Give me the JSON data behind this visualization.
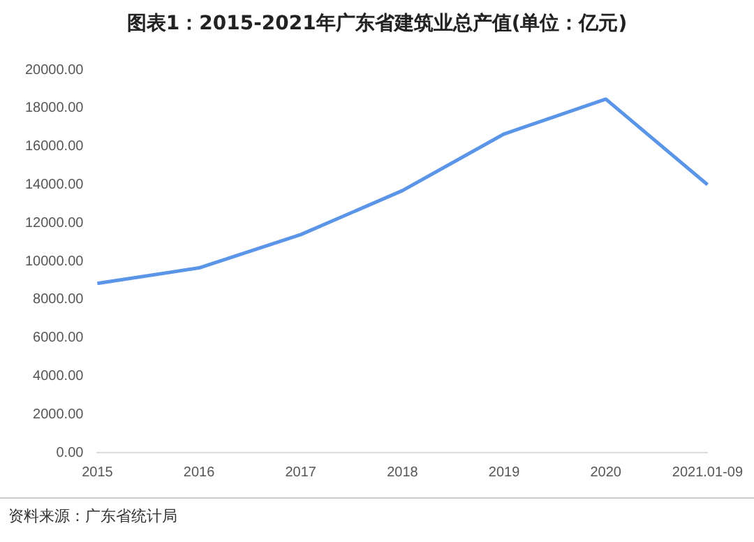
{
  "chart_data": {
    "type": "line",
    "title": "图表1：2015-2021年广东省建筑业总产值(单位：亿元)",
    "categories": [
      "2015",
      "2016",
      "2017",
      "2018",
      "2019",
      "2020",
      "2021.01-09"
    ],
    "series": [
      {
        "color": "#5b95e8",
        "values": [
          8840,
          9650,
          11390,
          13690,
          16650,
          18470,
          14000
        ]
      }
    ],
    "ylim": [
      0,
      20000
    ],
    "yticks": [
      {
        "value": 0,
        "label": "0.00"
      },
      {
        "value": 2000,
        "label": "2000.00"
      },
      {
        "value": 4000,
        "label": "4000.00"
      },
      {
        "value": 6000,
        "label": "6000.00"
      },
      {
        "value": 8000,
        "label": "8000.00"
      },
      {
        "value": 10000,
        "label": "10000.00"
      },
      {
        "value": 12000,
        "label": "12000.00"
      },
      {
        "value": 14000,
        "label": "14000.00"
      },
      {
        "value": 16000,
        "label": "16000.00"
      },
      {
        "value": 18000,
        "label": "18000.00"
      },
      {
        "value": 20000,
        "label": "20000.00"
      }
    ],
    "grid": false,
    "legend": false,
    "marker": "none",
    "line_style": "solid",
    "annotations": [
      "资料来源：广东省统计局"
    ]
  }
}
